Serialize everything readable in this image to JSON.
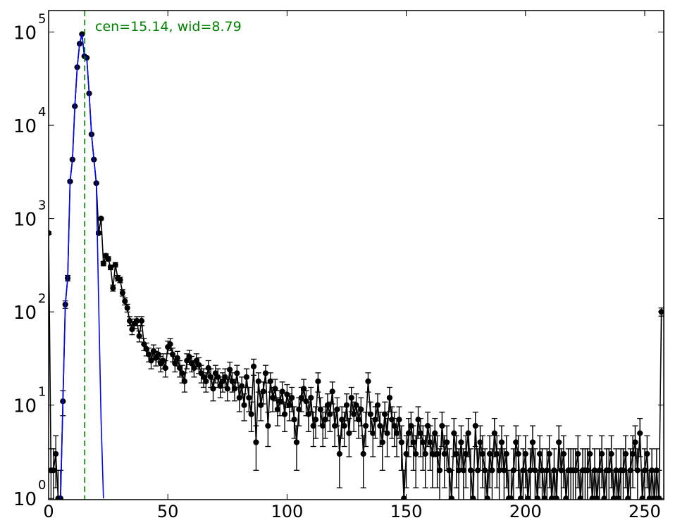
{
  "chart_data": {
    "type": "line",
    "yscale": "log",
    "xlim": [
      0,
      258
    ],
    "ylim": [
      0.97,
      170000
    ],
    "xticks": [
      0,
      50,
      100,
      150,
      200,
      250
    ],
    "yticks": [
      {
        "value": 1,
        "label": "10",
        "exponent": "0"
      },
      {
        "value": 10,
        "label": "10",
        "exponent": "1"
      },
      {
        "value": 100,
        "label": "10",
        "exponent": "2"
      },
      {
        "value": 1000,
        "label": "10",
        "exponent": "3"
      },
      {
        "value": 10000,
        "label": "10",
        "exponent": "4"
      },
      {
        "value": 100000,
        "label": "10",
        "exponent": "5"
      }
    ],
    "grid": false,
    "annotation": {
      "text": "cen=15.14, wid=8.79",
      "color": "#008000"
    },
    "vline": {
      "x": 15.14,
      "color": "#008000",
      "style": "dashed"
    },
    "series": [
      {
        "color": "#000000",
        "marker": "o",
        "x": [
          0,
          1,
          2,
          3,
          4,
          5,
          6,
          7,
          8,
          9,
          10,
          11,
          12,
          13,
          14,
          15,
          16,
          17,
          18,
          19,
          20,
          21,
          22,
          23,
          24,
          25,
          26,
          27,
          28,
          29,
          30,
          31,
          32,
          33,
          34,
          35,
          36,
          37,
          38,
          39,
          40,
          41,
          42,
          43,
          44,
          45,
          46,
          47,
          48,
          49,
          50,
          51,
          52,
          53,
          54,
          55,
          56,
          57,
          58,
          59,
          60,
          61,
          62,
          63,
          64,
          65,
          66,
          67,
          68,
          69,
          70,
          71,
          72,
          73,
          74,
          75,
          76,
          77,
          78,
          79,
          80,
          81,
          82,
          83,
          84,
          85,
          86,
          87,
          88,
          89,
          90,
          91,
          92,
          93,
          94,
          95,
          96,
          97,
          98,
          99,
          100,
          101,
          102,
          103,
          104,
          105,
          106,
          107,
          108,
          109,
          110,
          111,
          112,
          113,
          114,
          115,
          116,
          117,
          118,
          119,
          120,
          121,
          122,
          123,
          124,
          125,
          126,
          127,
          128,
          129,
          130,
          131,
          132,
          133,
          134,
          135,
          136,
          137,
          138,
          139,
          140,
          141,
          142,
          143,
          144,
          145,
          146,
          147,
          148,
          149,
          150,
          151,
          152,
          153,
          154,
          155,
          156,
          157,
          158,
          159,
          160,
          161,
          162,
          163,
          164,
          165,
          166,
          167,
          168,
          169,
          170,
          171,
          172,
          173,
          174,
          175,
          176,
          177,
          178,
          179,
          180,
          181,
          182,
          183,
          184,
          185,
          186,
          187,
          188,
          189,
          190,
          191,
          192,
          193,
          194,
          195,
          196,
          197,
          198,
          199,
          200,
          201,
          202,
          203,
          204,
          205,
          206,
          207,
          208,
          209,
          210,
          211,
          212,
          213,
          214,
          215,
          216,
          217,
          218,
          219,
          220,
          221,
          222,
          223,
          224,
          225,
          226,
          227,
          228,
          229,
          230,
          231,
          232,
          233,
          234,
          235,
          236,
          237,
          238,
          239,
          240,
          241,
          242,
          243,
          244,
          245,
          246,
          247,
          248,
          249,
          250,
          251,
          252,
          253,
          254,
          255,
          256,
          257
        ],
        "values": [
          700,
          2,
          2,
          3,
          1,
          1,
          11,
          120,
          230,
          2500,
          4300,
          16000,
          42000,
          75000,
          95000,
          55000,
          53000,
          22000,
          8000,
          4300,
          2400,
          700,
          1000,
          330,
          400,
          370,
          300,
          180,
          320,
          230,
          220,
          160,
          130,
          110,
          80,
          65,
          75,
          80,
          55,
          80,
          45,
          40,
          35,
          30,
          38,
          32,
          35,
          28,
          30,
          25,
          42,
          45,
          35,
          28,
          32,
          25,
          22,
          18,
          30,
          33,
          28,
          25,
          30,
          27,
          22,
          20,
          18,
          25,
          20,
          15,
          22,
          20,
          16,
          18,
          20,
          15,
          24,
          18,
          15,
          22,
          12,
          16,
          10,
          20,
          12,
          8,
          26,
          4,
          18,
          10,
          14,
          22,
          6,
          18,
          12,
          15,
          9,
          11,
          14,
          8,
          13,
          10,
          12,
          7,
          4,
          9,
          12,
          15,
          11,
          8,
          12,
          6,
          7,
          18,
          9,
          6,
          7,
          10,
          8,
          14,
          6,
          9,
          3,
          7,
          6,
          10,
          5,
          12,
          8,
          10,
          7,
          9,
          3,
          6,
          18,
          8,
          5,
          7,
          10,
          6,
          4,
          8,
          5,
          12,
          7,
          6,
          5,
          7,
          4,
          1,
          3,
          5,
          6,
          4,
          3,
          7,
          5,
          4,
          3,
          6,
          4,
          3,
          5,
          3,
          2,
          6,
          3,
          4,
          2,
          1,
          5,
          3,
          2,
          4,
          2,
          3,
          5,
          2,
          1,
          6,
          2,
          4,
          3,
          2,
          1,
          3,
          2,
          5,
          3,
          2,
          4,
          2,
          3,
          1,
          1,
          2,
          4,
          3,
          1,
          2,
          3,
          1,
          2,
          4,
          2,
          1,
          3,
          2,
          1,
          2,
          3,
          1,
          2,
          1,
          4,
          2,
          3,
          1,
          2,
          2,
          2,
          2,
          3,
          1,
          2,
          2,
          2,
          3,
          1,
          2,
          1,
          2,
          3,
          1,
          2,
          2,
          3,
          1,
          2,
          1,
          2,
          2,
          3,
          1,
          2,
          3,
          4,
          2,
          5,
          1,
          2,
          3,
          1,
          2,
          1,
          2,
          1,
          100
        ],
        "errors": [
          26.5,
          1.4,
          1.4,
          1.7,
          1,
          1,
          3.3,
          11,
          15.2,
          50,
          65.6,
          126.5,
          204.9,
          273.9,
          308.2,
          234.5,
          230.2,
          148.3,
          89.4,
          65.6,
          49,
          26.5,
          31.6,
          18.2,
          20,
          19.2,
          17.3,
          13.4,
          17.9,
          15.2,
          14.8,
          12.6,
          11.4,
          10.5,
          8.9,
          8.1,
          8.7,
          8.9,
          7.4,
          8.9,
          6.7,
          6.3,
          5.9,
          5.5,
          6.2,
          5.7,
          5.9,
          5.3,
          5.5,
          5,
          6.5,
          6.7,
          5.9,
          5.3,
          5.7,
          5,
          4.7,
          4.2,
          5.5,
          5.7,
          5.3,
          5,
          5.5,
          5.2,
          4.7,
          4.5,
          4.2,
          5,
          4.5,
          3.9,
          4.7,
          4.5,
          4,
          4.2,
          4.5,
          3.9,
          4.9,
          4.2,
          3.9,
          4.7,
          3.5,
          4,
          3.2,
          4.5,
          3.5,
          2.8,
          5.1,
          2,
          4.2,
          3.2,
          3.7,
          4.7,
          2.4,
          4.2,
          3.5,
          3.9,
          3,
          3.3,
          3.7,
          2.8,
          3.6,
          3.2,
          3.5,
          2.6,
          2,
          3,
          3.5,
          3.9,
          3.3,
          2.8,
          3.5,
          2.4,
          2.6,
          4.2,
          3,
          2.4,
          2.6,
          3.2,
          2.8,
          3.7,
          2.4,
          3,
          1.7,
          2.6,
          2.4,
          3.2,
          2.2,
          3.5,
          2.8,
          3.2,
          2.6,
          3,
          1.7,
          2.4,
          4.2,
          2.8,
          2.2,
          2.6,
          3.2,
          2.4,
          2,
          2.8,
          2.2,
          3.5,
          2.6,
          2.4,
          2.2,
          2.6,
          2,
          1,
          1.7,
          2.2,
          2.4,
          2,
          1.7,
          2.6,
          2.2,
          2,
          1.7,
          2.4,
          2,
          1.7,
          2.2,
          1.7,
          1.4,
          2.4,
          1.7,
          2,
          1.4,
          1,
          2.2,
          1.7,
          1.4,
          2,
          1.4,
          1.7,
          2.2,
          1.4,
          1,
          2.4,
          1.4,
          2,
          1.7,
          1.4,
          1,
          1.7,
          1.4,
          2.2,
          1.7,
          1.4,
          2,
          1.4,
          1.7,
          1,
          1,
          1.4,
          2,
          1.7,
          1,
          1.4,
          1.7,
          1,
          1.4,
          2,
          1.4,
          1,
          1.7,
          1.4,
          1,
          1.4,
          1.7,
          1,
          1.4,
          1,
          2,
          1.4,
          1.7,
          1,
          1.4,
          1.4,
          1.4,
          1.4,
          1.7,
          1,
          1.4,
          1.4,
          1.4,
          1.7,
          1,
          1.4,
          1,
          1.4,
          1.7,
          1,
          1.4,
          1.4,
          1.7,
          1,
          1.4,
          1,
          1.4,
          1.4,
          1.7,
          1,
          1.4,
          1.7,
          2,
          1.4,
          2.2,
          1,
          1.4,
          1.7,
          1,
          1.4,
          1,
          1.4,
          1,
          10
        ]
      },
      {
        "color": "#0000ff",
        "x": [
          5,
          6,
          7,
          8,
          9,
          10,
          11,
          12,
          13,
          14,
          15,
          16,
          17,
          18,
          19,
          20,
          21,
          22,
          23
        ],
        "values": [
          1,
          11,
          120,
          230,
          2500,
          4300,
          16000,
          42000,
          75000,
          95000,
          55000,
          53000,
          22000,
          8000,
          4300,
          2400,
          120,
          7,
          1
        ]
      }
    ]
  }
}
